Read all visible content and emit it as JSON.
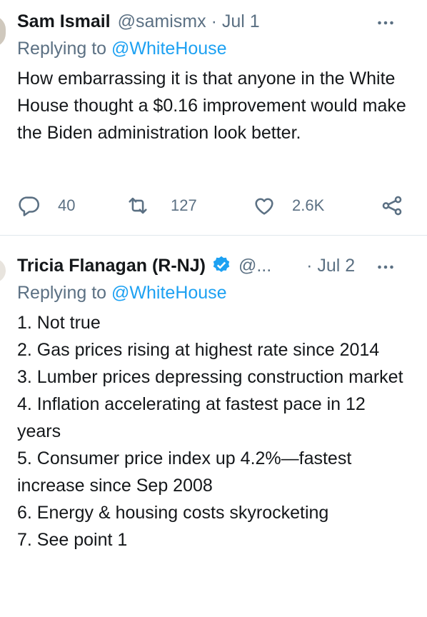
{
  "tweets": [
    {
      "name": "Sam Ismail",
      "handle": "@samismx",
      "date": "Jul 1",
      "verified": false,
      "replying_label": "Replying to",
      "replying_to": "@WhiteHouse",
      "text": [
        "How embarrassing it is that anyone in the White House thought a $0.16 improvement would make the Biden administration look better."
      ],
      "replies": "40",
      "retweets": "127",
      "likes": "2.6K"
    },
    {
      "name": "Tricia Flanagan (R-NJ)",
      "handle": "@...",
      "date": "Jul 2",
      "verified": true,
      "replying_label": "Replying to",
      "replying_to": "@WhiteHouse",
      "text": [
        "1. Not true",
        "2. Gas prices rising at highest rate since 2014",
        "3. Lumber prices depressing construction market",
        "4. Inflation accelerating at fastest pace in 12 years",
        "5. Consumer price index up 4.2%—fastest increase since Sep 2008",
        "6. Energy & housing costs skyrocketing",
        "7. See point 1"
      ]
    }
  ]
}
